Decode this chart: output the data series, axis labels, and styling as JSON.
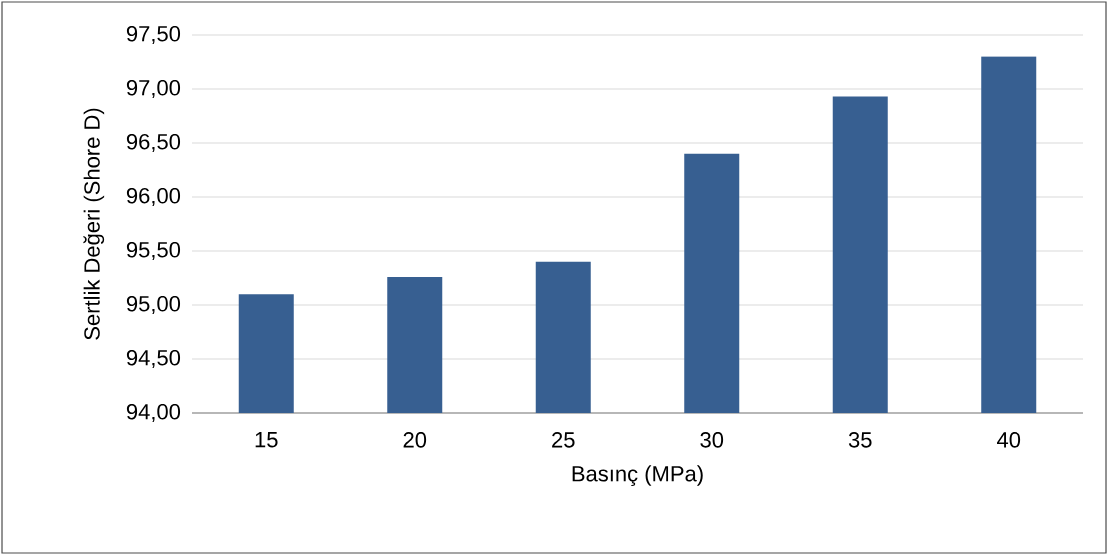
{
  "chart_data": {
    "type": "bar",
    "xlabel": "Basınç (MPa)",
    "ylabel": "Sertlik Değeri (Shore D)",
    "categories": [
      "15",
      "20",
      "25",
      "30",
      "35",
      "40"
    ],
    "values": [
      95.1,
      95.26,
      95.4,
      96.4,
      96.93,
      97.3
    ],
    "color": "#375f91",
    "ylim": [
      94,
      97.5
    ],
    "yticks": [
      {
        "value": 94,
        "label": "94,00"
      },
      {
        "value": 94.5,
        "label": "94,50"
      },
      {
        "value": 95,
        "label": "95,00"
      },
      {
        "value": 95.5,
        "label": "95,50"
      },
      {
        "value": 96,
        "label": "96,00"
      },
      {
        "value": 96.5,
        "label": "96,50"
      },
      {
        "value": 97,
        "label": "97,00"
      },
      {
        "value": 97.5,
        "label": "97,50"
      }
    ],
    "grid": "y"
  }
}
